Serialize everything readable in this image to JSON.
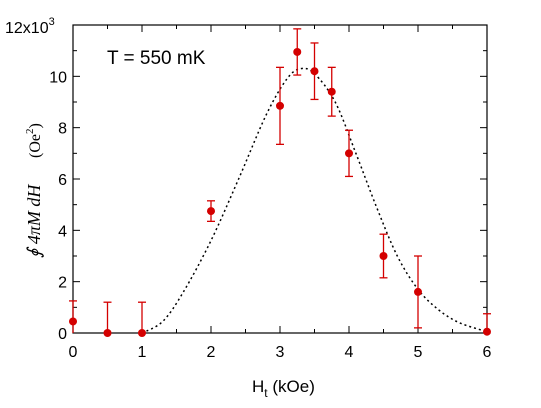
{
  "chart_data": {
    "type": "scatter",
    "annotation": "T = 550 mK",
    "xlabel_main": "H",
    "xlabel_sub": "t",
    "xlabel_units": "(kOe)",
    "ylabel_math": "∮ 4πM dH",
    "ylabel_units": "(Oe",
    "ylabel_units_sup": "2",
    "ylabel_units_close": ")",
    "ytop_label": "12x10",
    "ytop_label_exp": "3",
    "xlim": [
      0,
      6
    ],
    "ylim": [
      0,
      12
    ],
    "xticks": [
      0,
      1,
      2,
      3,
      4,
      5,
      6
    ],
    "yticks": [
      0,
      2,
      4,
      6,
      8,
      10
    ],
    "y_multiplier": 1000,
    "points": [
      {
        "x": 0.0,
        "y": 0.45,
        "err": 0.8
      },
      {
        "x": 0.5,
        "y": 0.0,
        "err": 1.2
      },
      {
        "x": 1.0,
        "y": 0.0,
        "err": 1.2
      },
      {
        "x": 2.0,
        "y": 4.75,
        "err": 0.4
      },
      {
        "x": 3.0,
        "y": 8.85,
        "err": 1.5
      },
      {
        "x": 3.25,
        "y": 10.95,
        "err": 0.9
      },
      {
        "x": 3.5,
        "y": 10.2,
        "err": 1.1
      },
      {
        "x": 3.75,
        "y": 9.4,
        "err": 0.95
      },
      {
        "x": 4.0,
        "y": 7.0,
        "err": 0.9
      },
      {
        "x": 4.5,
        "y": 3.0,
        "err": 0.85
      },
      {
        "x": 5.0,
        "y": 1.6,
        "err": 1.4
      },
      {
        "x": 6.0,
        "y": 0.05,
        "err": 0.7
      }
    ],
    "fit_curve": [
      {
        "x": 1.0,
        "y": 0.0
      },
      {
        "x": 1.3,
        "y": 0.45
      },
      {
        "x": 1.6,
        "y": 1.6
      },
      {
        "x": 2.0,
        "y": 3.6
      },
      {
        "x": 2.4,
        "y": 6.0
      },
      {
        "x": 2.8,
        "y": 8.5
      },
      {
        "x": 3.1,
        "y": 9.9
      },
      {
        "x": 3.3,
        "y": 10.3
      },
      {
        "x": 3.5,
        "y": 10.1
      },
      {
        "x": 3.8,
        "y": 9.0
      },
      {
        "x": 4.1,
        "y": 7.0
      },
      {
        "x": 4.4,
        "y": 4.9
      },
      {
        "x": 4.7,
        "y": 3.0
      },
      {
        "x": 5.0,
        "y": 1.7
      },
      {
        "x": 5.3,
        "y": 0.9
      },
      {
        "x": 5.6,
        "y": 0.4
      },
      {
        "x": 6.0,
        "y": 0.05
      }
    ],
    "point_color": "#d40000",
    "curve_color": "#000000",
    "grid": false,
    "fit_style": "dotted"
  }
}
